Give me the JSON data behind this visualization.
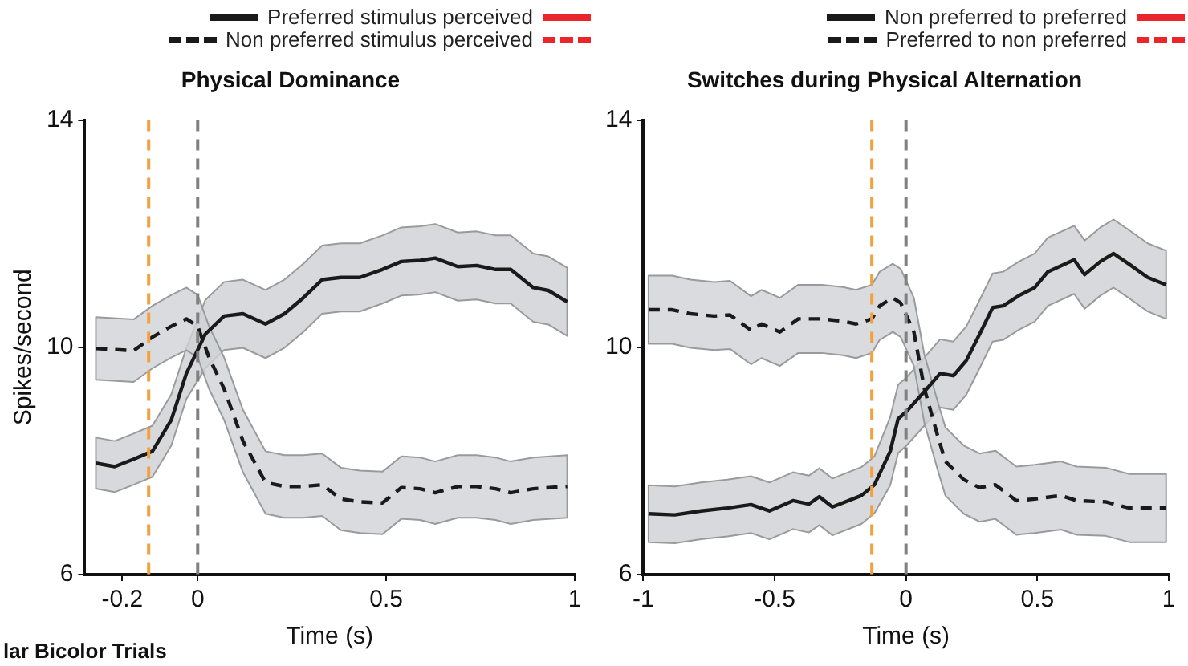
{
  "chart_data": [
    {
      "type": "line",
      "title": "Physical Dominance",
      "xlabel": "Time (s)",
      "ylabel": "Spikes/second",
      "legend": "top",
      "grid": false,
      "xlim": [
        -0.3,
        1
      ],
      "xticks": [
        -0.2,
        0,
        0.5,
        1
      ],
      "ylim": [
        6,
        14
      ],
      "yticks": [
        6,
        10,
        14
      ],
      "annotations": [
        "lar Bicolor Trials"
      ],
      "ref_lines": [
        {
          "axis": "x",
          "value": -0.13,
          "color": "#f5a040",
          "line_style": "dashed"
        },
        {
          "axis": "x",
          "value": 0,
          "color": "#808080",
          "line_style": "dashed"
        }
      ],
      "series": [
        {
          "name": "Preferred stimulus perceived",
          "color": "#1a1a1a",
          "line_style": "solid",
          "x": [
            -0.27,
            -0.22,
            -0.17,
            -0.12,
            -0.07,
            -0.03,
            0.02,
            0.07,
            0.12,
            0.18,
            0.23,
            0.28,
            0.33,
            0.38,
            0.43,
            0.49,
            0.54,
            0.59,
            0.63,
            0.69,
            0.74,
            0.79,
            0.83,
            0.89,
            0.93,
            0.98
          ],
          "values": [
            7.96,
            7.9,
            8.03,
            8.17,
            8.72,
            9.54,
            10.23,
            10.55,
            10.59,
            10.41,
            10.59,
            10.87,
            11.19,
            11.23,
            11.23,
            11.37,
            11.51,
            11.53,
            11.57,
            11.42,
            11.44,
            11.37,
            11.37,
            11.05,
            11.0,
            10.8
          ],
          "lower": [
            7.51,
            7.45,
            7.58,
            7.72,
            8.27,
            9.09,
            9.63,
            9.95,
            9.99,
            9.81,
            9.99,
            10.27,
            10.59,
            10.63,
            10.63,
            10.77,
            10.91,
            10.93,
            10.97,
            10.82,
            10.84,
            10.77,
            10.77,
            10.45,
            10.4,
            10.2
          ],
          "upper": [
            8.41,
            8.35,
            8.48,
            8.62,
            9.17,
            9.99,
            10.83,
            11.15,
            11.19,
            11.01,
            11.19,
            11.47,
            11.79,
            11.83,
            11.83,
            11.97,
            12.11,
            12.13,
            12.17,
            12.02,
            12.04,
            11.97,
            11.97,
            11.65,
            11.6,
            11.4
          ]
        },
        {
          "name": "Non preferred stimulus perceived",
          "color": "#1a1a1a",
          "line_style": "dashed",
          "x": [
            -0.27,
            -0.17,
            -0.12,
            -0.07,
            -0.03,
            0,
            0.03,
            0.07,
            0.12,
            0.18,
            0.23,
            0.28,
            0.33,
            0.38,
            0.43,
            0.49,
            0.54,
            0.59,
            0.63,
            0.69,
            0.74,
            0.79,
            0.83,
            0.89,
            0.98
          ],
          "values": [
            9.98,
            9.94,
            10.18,
            10.37,
            10.5,
            10.37,
            9.82,
            9.27,
            8.35,
            7.62,
            7.55,
            7.55,
            7.58,
            7.33,
            7.28,
            7.26,
            7.53,
            7.51,
            7.44,
            7.55,
            7.55,
            7.51,
            7.44,
            7.51,
            7.55
          ],
          "lower": [
            9.43,
            9.39,
            9.63,
            9.82,
            9.95,
            9.82,
            9.27,
            8.72,
            7.8,
            7.07,
            7.0,
            7.0,
            7.03,
            6.78,
            6.73,
            6.71,
            6.98,
            6.96,
            6.89,
            7.0,
            7.0,
            6.96,
            6.89,
            6.96,
            7.0
          ],
          "upper": [
            10.53,
            10.49,
            10.73,
            10.92,
            11.05,
            10.92,
            10.37,
            9.82,
            8.9,
            8.17,
            8.1,
            8.1,
            8.13,
            7.88,
            7.83,
            7.81,
            8.08,
            8.06,
            7.99,
            8.1,
            8.1,
            8.06,
            7.99,
            8.06,
            8.1
          ]
        }
      ]
    },
    {
      "type": "line",
      "title": "Switches during Physical Alternation",
      "xlabel": "Time (s)",
      "legend": "top",
      "grid": false,
      "xlim": [
        -1,
        1
      ],
      "xticks": [
        -1,
        -0.5,
        0,
        0.5,
        1
      ],
      "ylim": [
        6,
        14
      ],
      "yticks": [
        6,
        10,
        14
      ],
      "ref_lines": [
        {
          "axis": "x",
          "value": -0.13,
          "color": "#f5a040",
          "line_style": "dashed"
        },
        {
          "axis": "x",
          "value": 0,
          "color": "#808080",
          "line_style": "dashed"
        }
      ],
      "series": [
        {
          "name": "Non preferred to preferred",
          "color": "#1a1a1a",
          "line_style": "solid",
          "x": [
            -0.98,
            -0.88,
            -0.78,
            -0.68,
            -0.59,
            -0.52,
            -0.43,
            -0.37,
            -0.33,
            -0.28,
            -0.17,
            -0.12,
            -0.06,
            -0.03,
            0,
            0.07,
            0.13,
            0.18,
            0.23,
            0.28,
            0.33,
            0.37,
            0.43,
            0.49,
            0.54,
            0.64,
            0.68,
            0.74,
            0.79,
            0.85,
            0.92,
            0.99
          ],
          "values": [
            7.07,
            7.05,
            7.12,
            7.17,
            7.23,
            7.12,
            7.3,
            7.24,
            7.37,
            7.19,
            7.39,
            7.58,
            8.17,
            8.74,
            8.86,
            9.22,
            9.54,
            9.5,
            9.77,
            10.23,
            10.7,
            10.73,
            10.91,
            11.05,
            11.33,
            11.54,
            11.28,
            11.51,
            11.65,
            11.46,
            11.23,
            11.1
          ],
          "lower": [
            6.57,
            6.55,
            6.62,
            6.67,
            6.73,
            6.62,
            6.8,
            6.74,
            6.87,
            6.69,
            6.89,
            7.08,
            7.57,
            8.14,
            8.26,
            8.62,
            8.94,
            8.9,
            9.17,
            9.63,
            10.1,
            10.13,
            10.31,
            10.45,
            10.73,
            10.94,
            10.68,
            10.91,
            11.05,
            10.86,
            10.63,
            10.5
          ],
          "upper": [
            7.57,
            7.55,
            7.62,
            7.67,
            7.73,
            7.62,
            7.8,
            7.74,
            7.87,
            7.69,
            7.89,
            8.08,
            8.77,
            9.34,
            9.46,
            9.82,
            10.14,
            10.1,
            10.37,
            10.83,
            11.3,
            11.33,
            11.51,
            11.65,
            11.93,
            12.14,
            11.88,
            12.11,
            12.25,
            12.06,
            11.83,
            11.7
          ]
        },
        {
          "name": "Preferred to non preferred",
          "color": "#1a1a1a",
          "line_style": "dashed",
          "x": [
            -0.98,
            -0.89,
            -0.82,
            -0.73,
            -0.67,
            -0.59,
            -0.55,
            -0.48,
            -0.41,
            -0.32,
            -0.24,
            -0.19,
            -0.13,
            -0.1,
            -0.05,
            -0.02,
            0.03,
            0.07,
            0.12,
            0.15,
            0.22,
            0.28,
            0.34,
            0.42,
            0.49,
            0.59,
            0.65,
            0.76,
            0.85,
            0.99
          ],
          "values": [
            10.66,
            10.66,
            10.59,
            10.55,
            10.57,
            10.3,
            10.41,
            10.27,
            10.5,
            10.5,
            10.46,
            10.41,
            10.5,
            10.73,
            10.87,
            10.78,
            10.27,
            9.27,
            8.45,
            7.99,
            7.67,
            7.53,
            7.58,
            7.3,
            7.33,
            7.39,
            7.3,
            7.28,
            7.17,
            7.17
          ],
          "lower": [
            10.06,
            10.06,
            9.99,
            9.95,
            9.97,
            9.7,
            9.81,
            9.67,
            9.9,
            9.9,
            9.86,
            9.81,
            9.9,
            10.13,
            10.27,
            10.18,
            9.67,
            8.67,
            7.85,
            7.39,
            7.07,
            6.93,
            6.98,
            6.7,
            6.73,
            6.79,
            6.7,
            6.68,
            6.57,
            6.57
          ],
          "upper": [
            11.26,
            11.26,
            11.19,
            11.15,
            11.17,
            10.9,
            11.01,
            10.87,
            11.1,
            11.1,
            11.06,
            11.01,
            11.1,
            11.33,
            11.47,
            11.38,
            10.87,
            9.87,
            9.05,
            8.59,
            8.27,
            8.13,
            8.18,
            7.9,
            7.93,
            7.99,
            7.9,
            7.88,
            7.77,
            7.77
          ]
        }
      ]
    }
  ]
}
